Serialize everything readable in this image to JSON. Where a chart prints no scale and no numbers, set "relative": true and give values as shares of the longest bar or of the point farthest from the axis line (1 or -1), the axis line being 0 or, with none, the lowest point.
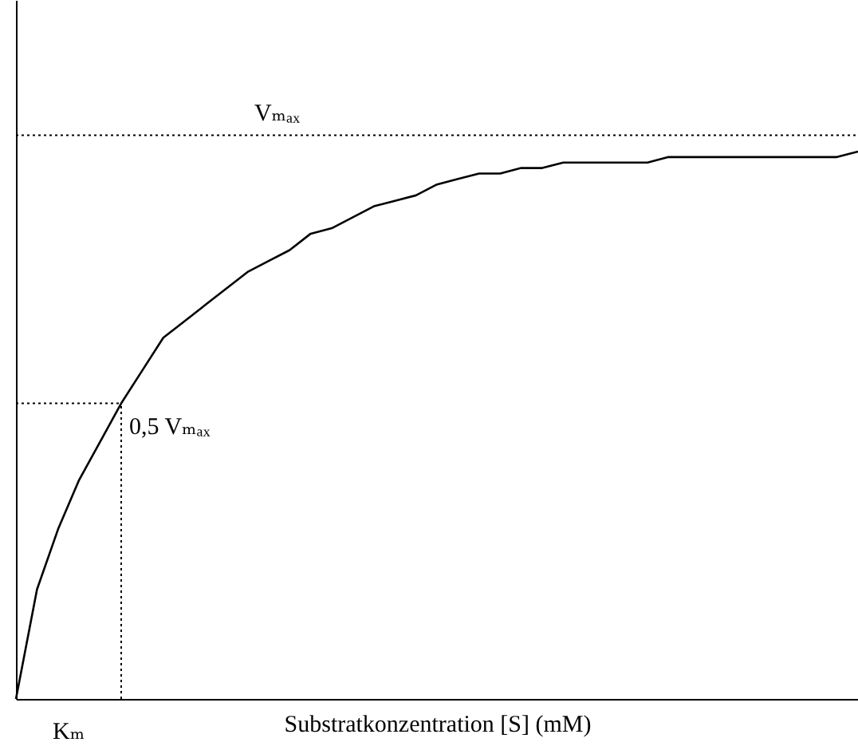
{
  "chart_data": {
    "type": "line",
    "relative": true,
    "xlabel": "Substratkonzentration [S] (mM)",
    "categories": [
      null,
      null,
      null,
      null,
      null,
      null,
      null,
      null,
      null,
      null,
      null,
      null,
      null,
      null,
      null,
      null,
      null,
      null,
      null,
      null,
      null,
      null,
      null,
      null,
      null,
      null,
      null,
      null,
      null,
      null,
      null,
      null,
      null,
      null,
      null,
      null,
      null,
      null,
      null,
      null,
      null
    ],
    "series": [
      {
        "color": "#000000",
        "values": [
          0,
          0.2,
          0.31,
          0.4,
          0.47,
          0.54,
          0.6,
          0.66,
          0.69,
          0.72,
          0.75,
          0.78,
          0.8,
          0.82,
          0.85,
          0.86,
          0.88,
          0.9,
          0.91,
          0.92,
          0.94,
          0.95,
          0.96,
          0.96,
          0.97,
          0.97,
          0.98,
          0.98,
          0.98,
          0.98,
          0.98,
          0.99,
          0.99,
          0.99,
          0.99,
          0.99,
          0.99,
          0.99,
          0.99,
          0.99,
          1
        ]
      }
    ],
    "ref_lines": [
      {
        "axis": "y",
        "value": 1.03,
        "label": "Vₘₐₓ",
        "line_style": "dotted",
        "color": "#000000"
      },
      {
        "axis": "y",
        "value": 0.54,
        "label": "0,5 Vₘₐₓ",
        "line_style": "dotted",
        "color": "#000000"
      }
    ],
    "annotations": [
      "Kₘ"
    ],
    "grid": false,
    "marker": "none",
    "line_style": "solid"
  }
}
